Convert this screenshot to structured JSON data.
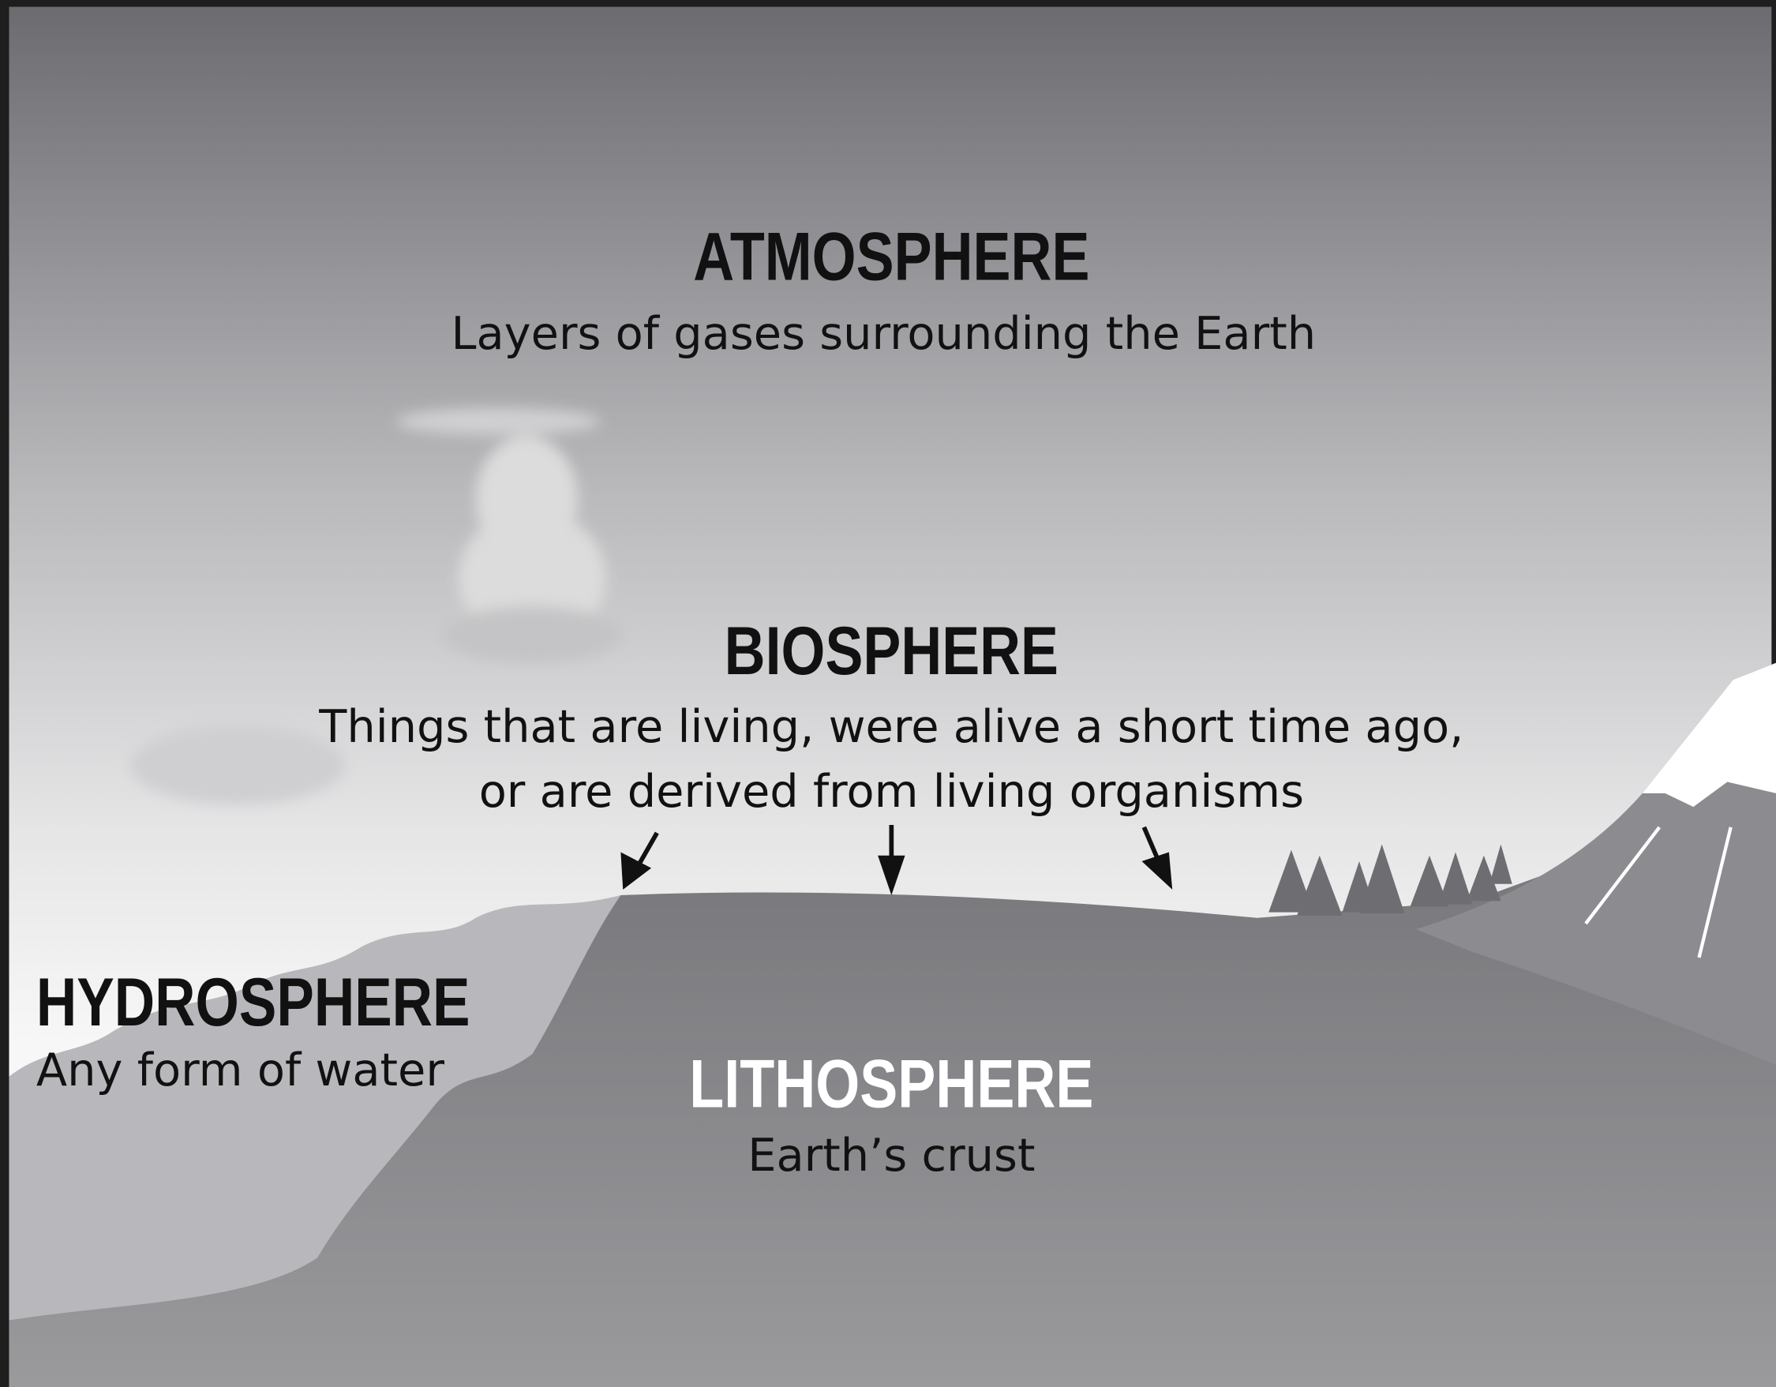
{
  "atmosphere": {
    "title": "ATMOSPHERE",
    "description": "Layers of gases surrounding the Earth"
  },
  "biosphere": {
    "title": "BIOSPHERE",
    "description": [
      "Things that are living, were alive a short time ago,",
      "or are derived from living organisms"
    ]
  },
  "hydrosphere": {
    "title": "HYDROSPHERE",
    "description": "Any form of water"
  },
  "lithosphere": {
    "title": "LITHOSPHERE",
    "description": "Earth’s crust"
  }
}
